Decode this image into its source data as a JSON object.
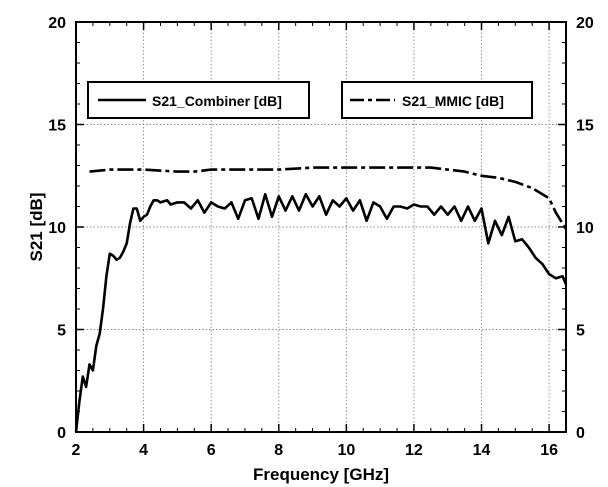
{
  "chart_data": {
    "type": "line",
    "xlabel": "Frequency [GHz]",
    "ylabel": "S21 [dB]",
    "xlim": [
      2,
      16.5
    ],
    "ylim": [
      0,
      20
    ],
    "x_ticks": [
      "2",
      "4",
      "6",
      "8",
      "10",
      "12",
      "14",
      "16"
    ],
    "y_ticks": [
      "0",
      "5",
      "10",
      "15",
      "20"
    ],
    "y_ticks_right": [
      "0",
      "5",
      "10",
      "15",
      "20"
    ],
    "grid": true,
    "legend_placement": "top",
    "series": [
      {
        "name": "S21_Combiner [dB]",
        "style": "solid",
        "color": "#000000",
        "x": [
          2.0,
          2.1,
          2.2,
          2.3,
          2.4,
          2.5,
          2.6,
          2.7,
          2.8,
          2.9,
          3.0,
          3.1,
          3.2,
          3.3,
          3.4,
          3.5,
          3.6,
          3.7,
          3.8,
          3.9,
          4.0,
          4.1,
          4.2,
          4.3,
          4.4,
          4.5,
          4.7,
          4.8,
          5.0,
          5.2,
          5.4,
          5.6,
          5.8,
          6.0,
          6.2,
          6.4,
          6.6,
          6.8,
          7.0,
          7.2,
          7.4,
          7.6,
          7.8,
          8.0,
          8.2,
          8.4,
          8.6,
          8.8,
          9.0,
          9.2,
          9.4,
          9.6,
          9.8,
          10.0,
          10.2,
          10.4,
          10.6,
          10.8,
          11.0,
          11.2,
          11.4,
          11.6,
          11.8,
          12.0,
          12.2,
          12.4,
          12.6,
          12.8,
          13.0,
          13.2,
          13.4,
          13.6,
          13.8,
          14.0,
          14.2,
          14.4,
          14.6,
          14.8,
          15.0,
          15.2,
          15.4,
          15.6,
          15.8,
          16.0,
          16.2,
          16.4,
          16.5
        ],
        "values": [
          0.0,
          1.5,
          2.7,
          2.2,
          3.3,
          3.0,
          4.2,
          4.8,
          6.0,
          7.6,
          8.7,
          8.6,
          8.4,
          8.5,
          8.8,
          9.2,
          10.2,
          10.9,
          10.9,
          10.3,
          10.5,
          10.6,
          11.0,
          11.3,
          11.3,
          11.2,
          11.3,
          11.1,
          11.2,
          11.2,
          10.9,
          11.3,
          10.7,
          11.2,
          11.0,
          10.9,
          11.2,
          10.4,
          11.3,
          11.4,
          10.4,
          11.6,
          10.5,
          11.5,
          10.8,
          11.5,
          10.8,
          11.6,
          11.0,
          11.5,
          10.6,
          11.3,
          11.0,
          11.4,
          10.8,
          11.3,
          10.3,
          11.2,
          11.0,
          10.4,
          11.0,
          11.0,
          10.9,
          11.1,
          11.0,
          11.0,
          10.6,
          11.0,
          10.6,
          11.0,
          10.3,
          11.0,
          10.3,
          10.9,
          9.2,
          10.3,
          9.6,
          10.5,
          9.3,
          9.4,
          9.0,
          8.5,
          8.2,
          7.7,
          7.5,
          7.6,
          7.2
        ]
      },
      {
        "name": "S21_MMIC [dB]",
        "style": "dash-dot",
        "color": "#000000",
        "x": [
          2.4,
          3.0,
          4.0,
          5.0,
          5.5,
          6.0,
          7.0,
          8.0,
          9.0,
          10.0,
          11.0,
          11.5,
          12.0,
          12.5,
          13.0,
          13.5,
          14.0,
          14.5,
          15.0,
          15.5,
          16.0,
          16.2,
          16.5
        ],
        "values": [
          12.7,
          12.8,
          12.8,
          12.7,
          12.7,
          12.8,
          12.8,
          12.8,
          12.9,
          12.9,
          12.9,
          12.9,
          12.9,
          12.9,
          12.8,
          12.7,
          12.5,
          12.4,
          12.2,
          11.9,
          11.4,
          10.7,
          9.9
        ]
      }
    ]
  }
}
